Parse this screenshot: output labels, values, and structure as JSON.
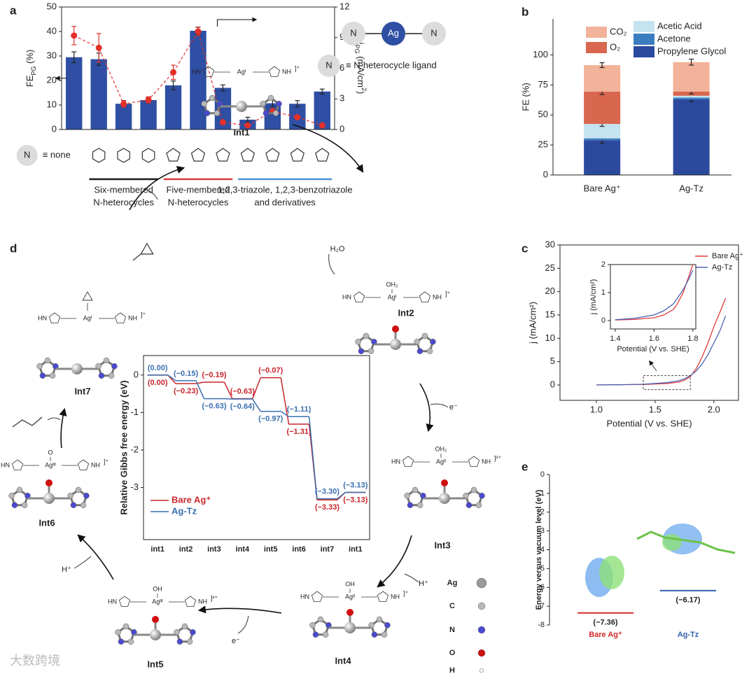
{
  "chart_data": [
    {
      "panel": "a",
      "type": "bar",
      "categories": [
        "≡  none",
        null,
        null,
        null,
        null,
        null,
        null,
        null,
        null,
        null,
        null
      ],
      "groups": [
        {
          "label": [
            "Six-membered",
            "N-heterocycles"
          ],
          "color": "#1a1a1a",
          "first": 1,
          "last": 3
        },
        {
          "label": [
            "Five-membered",
            "N-heterocycles"
          ],
          "color": "#d63c3c",
          "first": 4,
          "last": 6
        },
        {
          "label": [
            "1,2,3-triazole, 1,2,3-benzotriazole",
            "and derivatives"
          ],
          "color": "#4a8fd0",
          "first": 7,
          "last": 10
        }
      ],
      "ylabel": [
        {
          "text": "FE"
        },
        {
          "text": "PG",
          "sub": true
        },
        {
          "text": " (%)"
        }
      ],
      "y2label": [
        {
          "text": "j"
        },
        {
          "text": "PG",
          "sub": true
        },
        {
          "text": " (mA/cm"
        },
        {
          "text": "2",
          "sup": true
        },
        {
          "text": ")"
        }
      ],
      "ylim": [
        0,
        50
      ],
      "yticks": [
        0,
        10,
        20,
        30,
        40,
        50
      ],
      "y2lim": [
        0,
        12
      ],
      "y2ticks": [
        0,
        3,
        6,
        9,
        12
      ],
      "series": [
        {
          "type": "bar",
          "color": "#2e4fa3",
          "values": [
            29.5,
            28.7,
            10.5,
            12.0,
            18.0,
            40.3,
            17.0,
            4.0,
            10.7,
            10.5,
            15.5
          ],
          "errors": [
            2.2,
            2.5,
            1.3,
            1.2,
            1.8,
            1.5,
            1.2,
            1.0,
            1.4,
            1.3,
            1.0
          ]
        },
        {
          "type": "line",
          "axis": "y2",
          "color": "#e3302a",
          "values": [
            9.2,
            8.0,
            2.5,
            2.9,
            5.6,
            9.6,
            0.7,
            0.4,
            1.8,
            1.2,
            0.4
          ],
          "errors": [
            0.9,
            1.4,
            0.3,
            0.3,
            0.7,
            0.4,
            0.1,
            0.1,
            0.2,
            0.2,
            0.1
          ]
        }
      ],
      "inset": {
        "ligand": "N",
        "metal": "Ag",
        "note": "≡ N-heterocycle ligand"
      }
    },
    {
      "panel": "b",
      "type": "bar",
      "stacked": true,
      "categories": [
        "Bare Ag⁺",
        "Ag-Tz"
      ],
      "ylabel": "FE (%)",
      "ylim": [
        0,
        130
      ],
      "yticks": [
        0,
        25,
        50,
        75,
        100
      ],
      "series": [
        {
          "name": "Propylene Glycol",
          "color": "#2b4a9e",
          "values": [
            29,
            63
          ],
          "errors": [
            2.5,
            2
          ]
        },
        {
          "name": "Acetone",
          "color": "#3a7dbf",
          "values": [
            1.5,
            1.5
          ],
          "errors": [
            null,
            null
          ]
        },
        {
          "name": "Acetic Acid",
          "color": "#c5e3f0",
          "values": [
            12,
            1.5
          ],
          "errors": [
            2,
            null
          ]
        },
        {
          "name": "O₂",
          "color": "#d9664f",
          "values": [
            27,
            3.5
          ],
          "errors": [
            2.5,
            2
          ]
        },
        {
          "name": "CO₂",
          "color": "#f2b39a",
          "values": [
            22,
            24.5
          ],
          "errors": [
            2,
            2.5
          ]
        }
      ]
    },
    {
      "panel": "c",
      "type": "line",
      "xlabel": "Potential (V vs. SHE)",
      "ylabel": "j (mA/cm²)",
      "xlim": [
        0.69,
        2.21
      ],
      "xticks": [
        {
          "value": 1,
          "label": "1.0"
        },
        1.5,
        {
          "value": 2,
          "label": "2.0"
        }
      ],
      "ylim": [
        -3.3,
        30
      ],
      "yticks": [
        0,
        5,
        10,
        15,
        20,
        25,
        30
      ],
      "legend": "upper right",
      "x": [
        1.0,
        1.2,
        1.4,
        1.6,
        1.7,
        1.75,
        1.8,
        1.85,
        1.9,
        1.95,
        2.0,
        2.05,
        2.1
      ],
      "series": [
        {
          "name": "Bare Ag⁺",
          "color": "#e23b3b",
          "values": [
            0,
            0.05,
            0.1,
            0.3,
            0.6,
            1.0,
            1.8,
            3.5,
            6.0,
            9.0,
            12.5,
            15.5,
            18.6
          ]
        },
        {
          "name": "Ag-Tz",
          "color": "#4b63b5",
          "values": [
            0,
            0.05,
            0.15,
            0.5,
            0.9,
            1.3,
            2.0,
            3.0,
            4.5,
            6.5,
            9.0,
            11.5,
            14.8
          ]
        }
      ],
      "inset": {
        "xlabel": "Potential (V vs. SHE)",
        "ylabel": "j (mA/cm²)",
        "xlim": [
          1.375,
          1.815
        ],
        "xticks": [
          1.4,
          1.6,
          1.8
        ],
        "ylim": [
          -0.3,
          2
        ],
        "yticks": [
          0,
          1,
          2
        ],
        "x": [
          1.4,
          1.5,
          1.6,
          1.65,
          1.7,
          1.72,
          1.75,
          1.78,
          1.8
        ],
        "series": [
          {
            "color": "#e23b3b",
            "values": [
              0.02,
              0.04,
              0.1,
              0.2,
              0.4,
              0.6,
              1.0,
              1.6,
              2.0
            ]
          },
          {
            "color": "#4b63b5",
            "values": [
              0.03,
              0.08,
              0.2,
              0.35,
              0.6,
              0.8,
              1.1,
              1.5,
              1.8
            ]
          }
        ]
      }
    },
    {
      "panel": "d",
      "type": "step",
      "ylabel": "Relative Gibbs free energy (eV)",
      "categories": [
        "int1",
        "int2",
        "int3",
        "int4",
        "int5",
        "int6",
        "int7",
        "int1"
      ],
      "ylim": [
        -4.39,
        0.52
      ],
      "yticks": [
        0,
        -1,
        -2,
        -3
      ],
      "legend": "lower left",
      "series": [
        {
          "name": "Bare Ag⁺",
          "color": "#c9252c",
          "values": [
            0,
            -0.23,
            -0.19,
            -0.63,
            -0.07,
            -1.31,
            -3.33,
            -3.13
          ],
          "value_labels": [
            "(0.00)",
            "(−0.23)",
            "(−0.19)",
            "(−0.63)",
            "(−0.07)",
            "(−1.31)",
            "(−3.33)",
            "(−3.13)"
          ]
        },
        {
          "name": "Ag-Tz",
          "color": "#3a6fb0",
          "values": [
            0,
            -0.15,
            -0.63,
            -0.64,
            -0.97,
            -1.11,
            -3.3,
            -3.13
          ],
          "value_labels": [
            "(0.00)",
            "(−0.15)",
            "(−0.63)",
            "(−0.64)",
            "(−0.97)",
            "(−1.11)",
            "(−3.30)",
            "(−3.13)"
          ]
        }
      ]
    },
    {
      "panel": "e",
      "type": "level",
      "ylabel": "Energy versus vacuum level (eV)",
      "categories": [
        "Bare Ag⁺",
        "Ag-Tz"
      ],
      "values": [
        -7.36,
        -6.17
      ],
      "value_labels": [
        "(−7.36)",
        "(−6.17)"
      ],
      "colors": [
        "#d42a2a",
        "#2f5fb0"
      ],
      "ylim": [
        -8,
        0
      ],
      "yticks": [
        0,
        -1,
        -2,
        -3,
        -4,
        -5,
        -6,
        -7,
        -8
      ]
    }
  ],
  "diagram": {
    "ligand_ends": [
      "HN",
      "NH"
    ],
    "intermediates": [
      {
        "name": "Int1",
        "metal": "Agᴵ",
        "charge": "]⁺"
      },
      {
        "name": "Int2",
        "metal": "Agᴵ",
        "axial": "OH₂",
        "charge": "]⁺"
      },
      {
        "name": "Int3",
        "metal": "Agᴵᴵ",
        "axial": "OH₂",
        "charge": "]²⁺"
      },
      {
        "name": "Int4",
        "metal": "Agᴵᴵ",
        "axial": "OH",
        "charge": "]⁺"
      },
      {
        "name": "Int5",
        "metal": "Agᴵᴵᴵ",
        "axial": "OH",
        "charge": "]²⁺"
      },
      {
        "name": "Int6",
        "metal": "Agᴵᴵᴵ",
        "axial": "O",
        "charge": "]⁺"
      },
      {
        "name": "Int7",
        "metal": "Agᴵ",
        "charge": "]⁺"
      }
    ],
    "reagents": [
      "H₂O",
      "e⁻",
      "H⁺",
      "e⁻",
      "H⁺"
    ],
    "atoms": [
      {
        "symbol": "Ag",
        "color": "#9a9a9a"
      },
      {
        "symbol": "C",
        "color": "#b8b8b8"
      },
      {
        "symbol": "N",
        "color": "#4a4ad0"
      },
      {
        "symbol": "O",
        "color": "#d01010"
      },
      {
        "symbol": "H",
        "color": "#f4f4f4"
      }
    ]
  },
  "watermark": "大数跨境"
}
